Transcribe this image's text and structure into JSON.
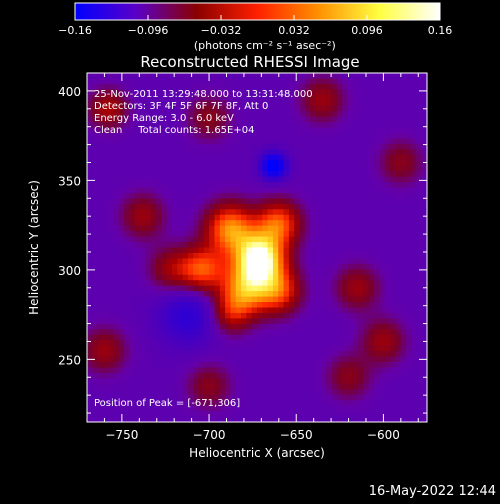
{
  "chart_data": {
    "type": "heatmap",
    "title": "Reconstructed RHESSI Image",
    "xlabel": "Heliocentric X (arcsec)",
    "ylabel": "Heliocentric Y (arcsec)",
    "xlim": [
      -770,
      -575
    ],
    "ylim": [
      215,
      410
    ],
    "xticks": [
      -750,
      -700,
      -650,
      -600
    ],
    "yticks": [
      250,
      300,
      350,
      400
    ],
    "xtick_labels": [
      "−750",
      "−700",
      "−650",
      "−600"
    ],
    "ytick_labels": [
      "250",
      "300",
      "350",
      "400"
    ],
    "colorbar": {
      "range": [
        -0.16,
        0.16
      ],
      "ticks": [
        -0.16,
        -0.096,
        -0.032,
        0.032,
        0.096,
        0.16
      ],
      "tick_labels": [
        "−0.16",
        "−0.096",
        "−0.032",
        "0.032",
        "0.096",
        "0.16"
      ],
      "units": "(photons cm⁻² s⁻¹ asec⁻²)",
      "colors": [
        "#0000ff",
        "#5a00c8",
        "#8a0000",
        "#ff2000",
        "#ff9000",
        "#ffff40",
        "#ffffff"
      ]
    },
    "annotations": [
      "25-Nov-2011 13:29:48.000 to 13:31:48.000",
      "Detectors: 3F 4F 5F 6F 7F 8F, Att 0",
      "Energy Range: 3.0 - 6.0 keV",
      "Clean     Total counts: 1.65E+04"
    ],
    "peak_label": "Position of Peak = [-671,306]",
    "peak": [
      -671,
      306
    ],
    "peak_value": 0.16,
    "background_value": -0.04,
    "sources": [
      {
        "x": -671,
        "y": 306,
        "amp": 0.2,
        "sigma": 10
      },
      {
        "x": -688,
        "y": 323,
        "amp": 0.13,
        "sigma": 10
      },
      {
        "x": -660,
        "y": 326,
        "amp": 0.11,
        "sigma": 9
      },
      {
        "x": -704,
        "y": 300,
        "amp": 0.11,
        "sigma": 9
      },
      {
        "x": -680,
        "y": 288,
        "amp": 0.12,
        "sigma": 10
      },
      {
        "x": -660,
        "y": 288,
        "amp": 0.1,
        "sigma": 9
      },
      {
        "x": -722,
        "y": 300,
        "amp": 0.06,
        "sigma": 9
      },
      {
        "x": -688,
        "y": 275,
        "amp": 0.06,
        "sigma": 8
      },
      {
        "x": -663,
        "y": 358,
        "amp": -0.14,
        "sigma": 5
      },
      {
        "x": -712,
        "y": 275,
        "amp": -0.06,
        "sigma": 12
      },
      {
        "x": -738,
        "y": 330,
        "amp": 0.06,
        "sigma": 9
      },
      {
        "x": -758,
        "y": 390,
        "amp": 0.07,
        "sigma": 8
      },
      {
        "x": -760,
        "y": 255,
        "amp": 0.06,
        "sigma": 9
      },
      {
        "x": -615,
        "y": 290,
        "amp": 0.06,
        "sigma": 9
      },
      {
        "x": -600,
        "y": 260,
        "amp": 0.06,
        "sigma": 9
      },
      {
        "x": -635,
        "y": 395,
        "amp": 0.06,
        "sigma": 9
      },
      {
        "x": -700,
        "y": 385,
        "amp": 0.05,
        "sigma": 9
      },
      {
        "x": -590,
        "y": 360,
        "amp": 0.05,
        "sigma": 9
      },
      {
        "x": -620,
        "y": 240,
        "amp": 0.05,
        "sigma": 9
      },
      {
        "x": -700,
        "y": 235,
        "amp": 0.05,
        "sigma": 9
      }
    ]
  },
  "footer": {
    "timestamp": "16-May-2022 12:44"
  }
}
